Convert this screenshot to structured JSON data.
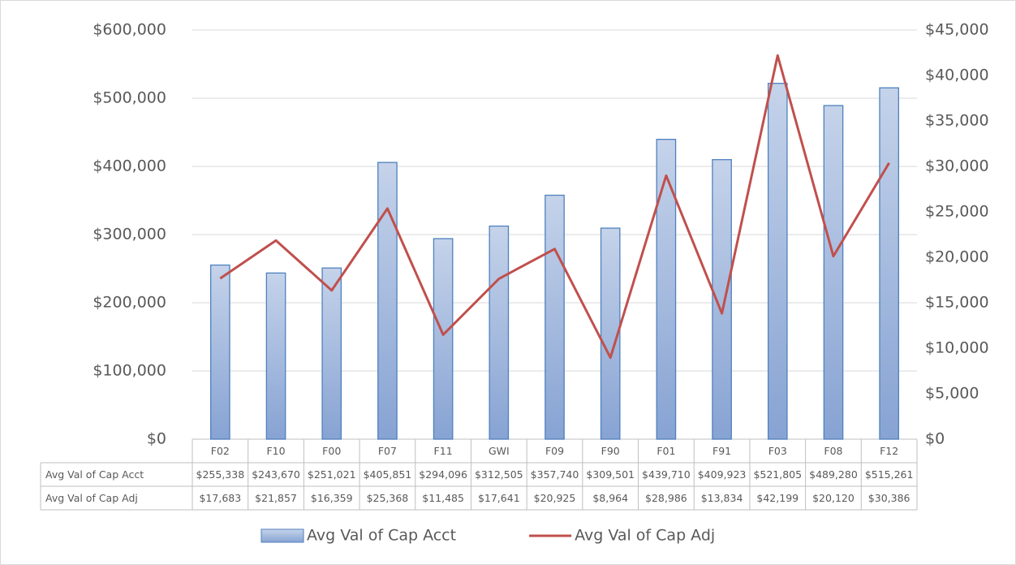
{
  "chart_data": {
    "type": "bar-line",
    "categories": [
      "F02",
      "F10",
      "F00",
      "F07",
      "F11",
      "GWI",
      "F09",
      "F90",
      "F01",
      "F91",
      "F03",
      "F08",
      "F12"
    ],
    "series": [
      {
        "name": "Avg Val of Cap Acct",
        "type": "bar",
        "color": "#4f81bd",
        "values": [
          255338,
          243670,
          251021,
          405851,
          294096,
          312505,
          357740,
          309501,
          439710,
          409923,
          521805,
          489280,
          515261
        ],
        "value_labels": [
          "$255,338",
          "$243,670",
          "$251,021",
          "$405,851",
          "$294,096",
          "$312,505",
          "$357,740",
          "$309,501",
          "$439,710",
          "$409,923",
          "$521,805",
          "$489,280",
          "$515,261"
        ]
      },
      {
        "name": "Avg Val of Cap Adj",
        "type": "line",
        "axis": "y2",
        "color": "#c0504d",
        "values": [
          17683,
          21857,
          16359,
          25368,
          11485,
          17641,
          20925,
          8964,
          28986,
          13834,
          42199,
          20120,
          30386
        ],
        "value_labels": [
          "$17,683",
          "$21,857",
          "$16,359",
          "$25,368",
          "$11,485",
          "$17,641",
          "$20,925",
          "$8,964",
          "$28,986",
          "$13,834",
          "$42,199",
          "$20,120",
          "$30,386"
        ]
      }
    ],
    "ylim": [
      0,
      600000
    ],
    "yticks": [
      {
        "value": 0,
        "label": "$0"
      },
      {
        "value": 100000,
        "label": "$100,000"
      },
      {
        "value": 200000,
        "label": "$200,000"
      },
      {
        "value": 300000,
        "label": "$300,000"
      },
      {
        "value": 400000,
        "label": "$400,000"
      },
      {
        "value": 500000,
        "label": "$500,000"
      },
      {
        "value": 600000,
        "label": "$600,000"
      }
    ],
    "y2lim": [
      0,
      45000
    ],
    "y2ticks": [
      {
        "value": 0,
        "label": "$0"
      },
      {
        "value": 5000,
        "label": "$5,000"
      },
      {
        "value": 10000,
        "label": "$10,000"
      },
      {
        "value": 15000,
        "label": "$15,000"
      },
      {
        "value": 20000,
        "label": "$20,000"
      },
      {
        "value": 25000,
        "label": "$25,000"
      },
      {
        "value": 30000,
        "label": "$30,000"
      },
      {
        "value": 35000,
        "label": "$35,000"
      },
      {
        "value": 40000,
        "label": "$40,000"
      },
      {
        "value": 45000,
        "label": "$45,000"
      }
    ],
    "grid": true,
    "legend": "bottom",
    "data_table": true
  }
}
